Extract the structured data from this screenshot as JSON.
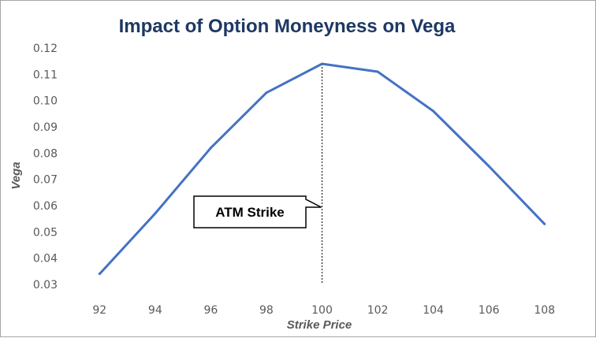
{
  "chart_data": {
    "type": "line",
    "title": "Impact of Option Moneyness on Vega",
    "xlabel": "Strike Price",
    "ylabel": "Vega",
    "x": [
      92,
      94,
      96,
      98,
      100,
      102,
      104,
      106,
      108
    ],
    "series": [
      {
        "values": [
          0.034,
          0.057,
          0.082,
          0.103,
          0.114,
          0.111,
          0.096,
          0.075,
          0.053
        ]
      }
    ],
    "ylim": [
      0.03,
      0.12
    ],
    "yticks": [
      "0.03",
      "0.04",
      "0.05",
      "0.06",
      "0.07",
      "0.08",
      "0.09",
      "0.10",
      "0.11",
      "0.12"
    ],
    "xticks": [
      "92",
      "94",
      "96",
      "98",
      "100",
      "102",
      "104",
      "106",
      "108"
    ],
    "grid": false,
    "line_color": "#4472c4",
    "annotation": {
      "text": "ATM Strike",
      "x": 100,
      "style": "dashed-vertical-line"
    }
  }
}
